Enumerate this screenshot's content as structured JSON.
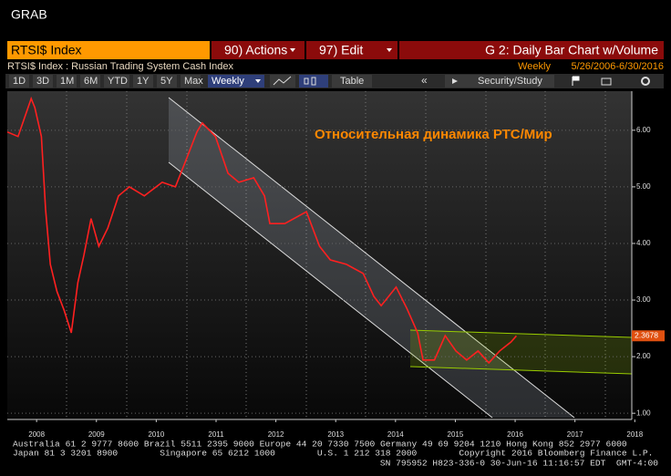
{
  "header": {
    "app": "GRAB",
    "security": "RTSI$ Index",
    "actions": "90) Actions",
    "edit": "97) Edit",
    "chart_name": "G 2: Daily Bar Chart w/Volume",
    "description": "RTSI$ Index : Russian Trading System Cash Index",
    "period": "Weekly",
    "range": "5/26/2006-6/30/2016"
  },
  "toolbar": {
    "buttons": [
      "1D",
      "3D",
      "1M",
      "6M",
      "YTD",
      "1Y",
      "5Y",
      "Max"
    ],
    "frequency": "Weekly",
    "table": "Table",
    "study": "Security/Study"
  },
  "chart_data": {
    "type": "line",
    "annotation": "Относительная динамика РТС/Мир",
    "last_value": 2.3678,
    "x": [
      2008.01,
      2008.19,
      2008.41,
      2008.47,
      2008.58,
      2008.65,
      2008.73,
      2008.84,
      2008.96,
      2009.08,
      2009.19,
      2009.29,
      2009.41,
      2009.54,
      2009.69,
      2009.87,
      2010.05,
      2010.3,
      2010.6,
      2010.82,
      2011.0,
      2011.18,
      2011.27,
      2011.49,
      2011.7,
      2011.88,
      2012.13,
      2012.31,
      2012.4,
      2012.65,
      2013.01,
      2013.23,
      2013.41,
      2013.68,
      2013.96,
      2014.14,
      2014.26,
      2014.51,
      2014.69,
      2014.87,
      2014.96,
      2015.15,
      2015.33,
      2015.51,
      2015.69,
      2015.88,
      2016.06,
      2016.24,
      2016.43,
      2016.52
    ],
    "series": [
      {
        "color": "#ff2020",
        "values": [
          5.97,
          5.89,
          6.56,
          6.4,
          5.89,
          4.6,
          3.63,
          3.15,
          2.82,
          2.42,
          3.31,
          3.79,
          4.44,
          3.95,
          4.27,
          4.84,
          5.0,
          4.84,
          5.08,
          5.0,
          5.48,
          5.97,
          6.13,
          5.89,
          5.24,
          5.08,
          5.16,
          4.84,
          4.35,
          4.35,
          4.56,
          3.95,
          3.71,
          3.63,
          3.47,
          3.06,
          2.9,
          3.23,
          2.85,
          2.42,
          1.94,
          1.94,
          2.37,
          2.1,
          1.94,
          2.1,
          1.89,
          2.1,
          2.26,
          2.3678
        ]
      }
    ],
    "xlim": [
      2008.01,
      2018.45
    ],
    "xticks": [
      {
        "value": 2008.5,
        "label": "2008"
      },
      {
        "value": 2009.5,
        "label": "2009"
      },
      {
        "value": 2010.5,
        "label": "2010"
      },
      {
        "value": 2011.5,
        "label": "2011"
      },
      {
        "value": 2012.5,
        "label": "2012"
      },
      {
        "value": 2013.5,
        "label": "2013"
      },
      {
        "value": 2014.5,
        "label": "2014"
      },
      {
        "value": 2015.5,
        "label": "2015"
      },
      {
        "value": 2016.5,
        "label": "2016"
      },
      {
        "value": 2017.5,
        "label": "2017"
      },
      {
        "value": 2018.5,
        "label": "2018"
      }
    ],
    "ylim": [
      0.89,
      6.69
    ],
    "yticks": [
      {
        "value": 1,
        "label": "1.00"
      },
      {
        "value": 2,
        "label": "2.00"
      },
      {
        "value": 3,
        "label": "3.00"
      },
      {
        "value": 4,
        "label": "4.00"
      },
      {
        "value": 5,
        "label": "5.00"
      },
      {
        "value": 6,
        "label": "6.00"
      }
    ],
    "grid": true
  },
  "footer": {
    "line1": "Australia 61 2 9777 8600 Brazil 5511 2395 9000 Europe 44 20 7330 7500 Germany 49 69 9204 1210 Hong Kong 852 2977 6000",
    "line2": "Japan 81 3 3201 8900        Singapore 65 6212 1000        U.S. 1 212 318 2000        Copyright 2016 Bloomberg Finance L.P.",
    "line3": "SN 795952 H823-336-0 30-Jun-16 11:16:57 EDT  GMT-4:00"
  }
}
